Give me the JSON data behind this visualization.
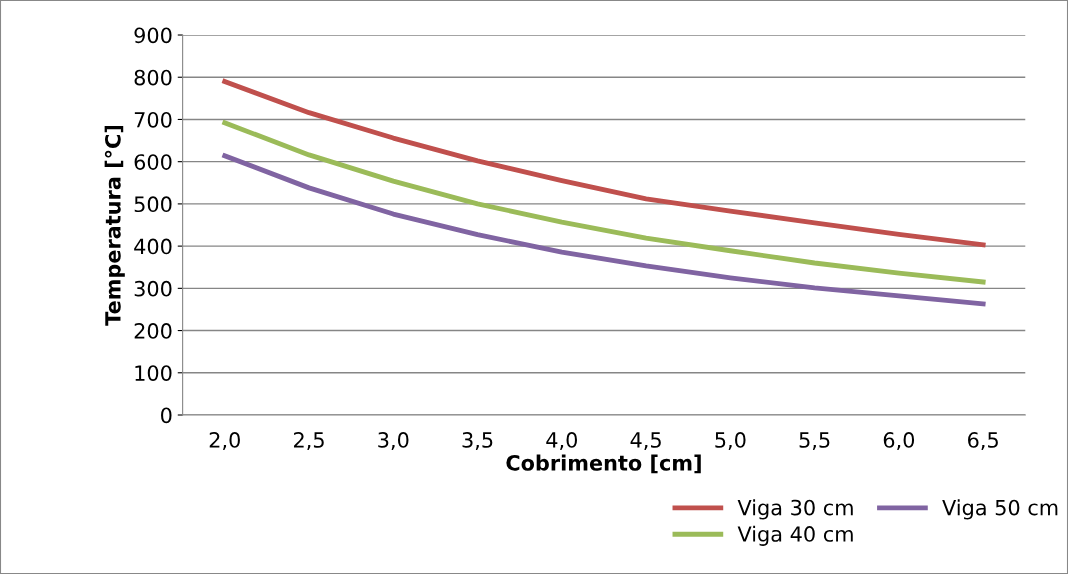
{
  "chart_data": {
    "type": "line",
    "xlabel": "Cobrimento [cm]",
    "ylabel": "Temperatura [°C]",
    "categories": [
      "2,0",
      "2,5",
      "3,0",
      "3,5",
      "4,0",
      "4,5",
      "5,0",
      "5,5",
      "6,0",
      "6,5"
    ],
    "series": [
      {
        "name": "Viga 30 cm",
        "color": "#c0504d",
        "values": [
          790,
          716,
          656,
          602,
          555,
          512,
          483,
          455,
          428,
          403
        ]
      },
      {
        "name": "Viga 40 cm",
        "color": "#9bbb59",
        "values": [
          692,
          616,
          554,
          500,
          457,
          419,
          389,
          360,
          336,
          315
        ]
      },
      {
        "name": "Viga 50 cm",
        "color": "#8064a2",
        "values": [
          614,
          538,
          476,
          427,
          386,
          353,
          325,
          301,
          282,
          263
        ]
      }
    ],
    "ylim": [
      0,
      900
    ],
    "yticks": [
      0,
      100,
      200,
      300,
      400,
      500,
      600,
      700,
      800,
      900
    ],
    "grid": "y",
    "legend": "bottom",
    "marker": "none",
    "line_style": "solid"
  }
}
